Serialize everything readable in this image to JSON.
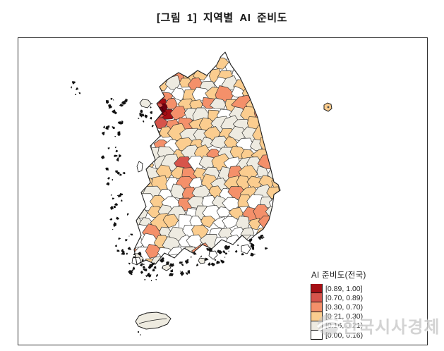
{
  "figure": {
    "title": "[그림 1] 지역별 AI 준비도"
  },
  "legend": {
    "title": "AI 준비도(전국)",
    "classes": [
      {
        "label": "[0.89, 1.00]",
        "color": "#a50f15"
      },
      {
        "label": "[0.70, 0.89)",
        "color": "#d6544b"
      },
      {
        "label": "[0.30, 0.70)",
        "color": "#f4906a"
      },
      {
        "label": "[0.21, 0.30)",
        "color": "#fbcd8f"
      },
      {
        "label": "[0.16, 0.21)",
        "color": "#eeebe1"
      },
      {
        "label": "[0.00, 0.16)",
        "color": "#ffffff"
      }
    ]
  },
  "watermark": {
    "text": "한국시사경제"
  },
  "map": {
    "region": "South Korea (district level)",
    "frame_color": "#2e2e2e",
    "boundary_color": "#30302e",
    "sea_color": "#ffffff",
    "urban_dark": "#6f0010"
  },
  "chart_data": {
    "type": "heatmap",
    "subtype": "choropleth-map",
    "title": "[그림 1] 지역별 AI 준비도",
    "legend_title": "AI 준비도(전국)",
    "legend_position": "bottom-right",
    "bins": [
      {
        "range": "[0.89, 1.00]",
        "color": "#a50f15"
      },
      {
        "range": "[0.70, 0.89)",
        "color": "#d6544b"
      },
      {
        "range": "[0.30, 0.70)",
        "color": "#f4906a"
      },
      {
        "range": "[0.21, 0.30)",
        "color": "#fbcd8f"
      },
      {
        "range": "[0.16, 0.21)",
        "color": "#eeebe1"
      },
      {
        "range": "[0.00, 0.16)",
        "color": "#ffffff"
      }
    ],
    "notes": "Highest AI readiness (dark red) concentrated in Seoul metropolitan cluster and Daejeon; orange band across Gyeonggi/Chungcheong; most southern and eastern rural districts in lowest two bins."
  }
}
